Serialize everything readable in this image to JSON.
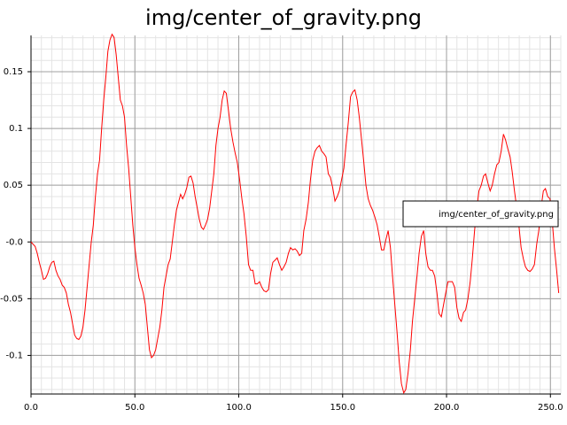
{
  "chart_data": {
    "type": "line",
    "title": "img/center_of_gravity.png",
    "x": [
      0,
      1,
      2,
      3,
      4,
      5,
      6,
      7,
      8,
      9,
      10,
      11,
      12,
      13,
      14,
      15,
      16,
      17,
      18,
      19,
      20,
      21,
      22,
      23,
      24,
      25,
      26,
      27,
      28,
      29,
      30,
      31,
      32,
      33,
      34,
      35,
      36,
      37,
      38,
      39,
      40,
      41,
      42,
      43,
      44,
      45,
      46,
      47,
      48,
      49,
      50,
      51,
      52,
      53,
      54,
      55,
      56,
      57,
      58,
      59,
      60,
      61,
      62,
      63,
      64,
      65,
      66,
      67,
      68,
      69,
      70,
      71,
      72,
      73,
      74,
      75,
      76,
      77,
      78,
      79,
      80,
      81,
      82,
      83,
      84,
      85,
      86,
      87,
      88,
      89,
      90,
      91,
      92,
      93,
      94,
      95.1,
      96.1,
      97.2,
      98.3,
      99.3,
      100.4,
      101.5,
      102.5,
      103.6,
      104.7,
      105.7,
      106.8,
      107.9,
      108.9,
      110.0,
      111.1,
      112.1,
      113.2,
      114.3,
      115.3,
      116.4,
      117.5,
      118.5,
      119.6,
      120.7,
      121.7,
      122.8,
      123.9,
      124.9,
      126.0,
      127.1,
      128.1,
      129.2,
      130.3,
      131.3,
      132.4,
      133.5,
      134.5,
      135.6,
      136.7,
      137.7,
      138.8,
      139.9,
      140.9,
      142.0,
      143.1,
      144.1,
      145.2,
      146.3,
      147.4,
      148.4,
      149.5,
      150.6,
      151.6,
      152.7,
      153.8,
      154.8,
      155.9,
      157.0,
      158.0,
      159.1,
      160.2,
      161.2,
      162.3,
      163.4,
      164.4,
      165.5,
      166.6,
      167.6,
      168.7,
      169.8,
      170.8,
      171.9,
      173.0,
      174.0,
      175.1,
      176.2,
      177.2,
      178.3,
      179.4,
      180.4,
      181.5,
      182.6,
      183.6,
      184.7,
      185.8,
      186.8,
      187.9,
      189.0,
      190.0,
      191.1,
      192.2,
      193.2,
      194.3,
      195.4,
      196.4,
      197.5,
      198.6,
      199.6,
      200.7,
      201.8,
      202.8,
      203.9,
      205.0,
      206.0,
      207.1,
      208.2,
      209.2,
      210.3,
      211.4,
      212.4,
      213.5,
      214.6,
      215.6,
      216.7,
      217.8,
      218.8,
      219.9,
      221.0,
      222.0,
      223.1,
      224.2,
      225.2,
      226.3,
      227.4,
      228.4,
      229.5,
      230.6,
      231.6,
      232.7,
      233.8,
      234.8,
      235.9,
      237.0,
      238.0,
      239.1,
      240.2,
      241.2,
      242.3,
      243.4,
      244.4,
      245.5,
      246.6,
      247.6,
      248.7,
      249.8,
      250.8,
      251.9,
      253.0,
      254.0
    ],
    "series": [
      {
        "name": "img/center_of_gravity.png",
        "color": "#ff0000",
        "values": [
          0.0,
          -0.002,
          -0.004,
          -0.01,
          -0.018,
          -0.025,
          -0.033,
          -0.032,
          -0.028,
          -0.022,
          -0.018,
          -0.017,
          -0.025,
          -0.03,
          -0.033,
          -0.038,
          -0.04,
          -0.045,
          -0.055,
          -0.062,
          -0.072,
          -0.082,
          -0.085,
          -0.086,
          -0.083,
          -0.075,
          -0.06,
          -0.04,
          -0.02,
          0.0,
          0.015,
          0.04,
          0.06,
          0.072,
          0.1,
          0.125,
          0.145,
          0.168,
          0.178,
          0.183,
          0.18,
          0.165,
          0.145,
          0.125,
          0.12,
          0.11,
          0.085,
          0.065,
          0.04,
          0.015,
          -0.005,
          -0.02,
          -0.032,
          -0.038,
          -0.045,
          -0.055,
          -0.075,
          -0.095,
          -0.102,
          -0.1,
          -0.095,
          -0.085,
          -0.075,
          -0.06,
          -0.04,
          -0.03,
          -0.02,
          -0.015,
          0.0,
          0.015,
          0.028,
          0.035,
          0.042,
          0.038,
          0.042,
          0.048,
          0.057,
          0.058,
          0.052,
          0.04,
          0.03,
          0.02,
          0.013,
          0.011,
          0.015,
          0.02,
          0.03,
          0.045,
          0.06,
          0.085,
          0.1,
          0.11,
          0.125,
          0.133,
          0.131,
          0.115,
          0.1,
          0.088,
          0.078,
          0.07,
          0.055,
          0.038,
          0.025,
          0.005,
          -0.02,
          -0.025,
          -0.025,
          -0.037,
          -0.037,
          -0.035,
          -0.04,
          -0.043,
          -0.044,
          -0.042,
          -0.028,
          -0.018,
          -0.016,
          -0.014,
          -0.02,
          -0.025,
          -0.022,
          -0.018,
          -0.01,
          -0.005,
          -0.007,
          -0.006,
          -0.008,
          -0.012,
          -0.01,
          0.01,
          0.02,
          0.035,
          0.055,
          0.072,
          0.08,
          0.083,
          0.085,
          0.08,
          0.078,
          0.075,
          0.06,
          0.057,
          0.048,
          0.036,
          0.04,
          0.045,
          0.055,
          0.065,
          0.085,
          0.105,
          0.128,
          0.132,
          0.134,
          0.125,
          0.11,
          0.09,
          0.07,
          0.05,
          0.038,
          0.032,
          0.028,
          0.022,
          0.015,
          0.005,
          -0.007,
          -0.007,
          0.002,
          0.01,
          -0.005,
          -0.03,
          -0.055,
          -0.08,
          -0.105,
          -0.125,
          -0.133,
          -0.13,
          -0.115,
          -0.095,
          -0.07,
          -0.05,
          -0.03,
          -0.01,
          0.005,
          0.01,
          -0.01,
          -0.022,
          -0.025,
          -0.025,
          -0.03,
          -0.045,
          -0.063,
          -0.066,
          -0.055,
          -0.045,
          -0.035,
          -0.035,
          -0.035,
          -0.04,
          -0.058,
          -0.067,
          -0.07,
          -0.062,
          -0.06,
          -0.05,
          -0.035,
          -0.015,
          0.01,
          0.03,
          0.045,
          0.05,
          0.058,
          0.06,
          0.052,
          0.045,
          0.05,
          0.06,
          0.068,
          0.07,
          0.08,
          0.095,
          0.09,
          0.082,
          0.075,
          0.062,
          0.045,
          0.03,
          0.015,
          -0.005,
          -0.015,
          -0.022,
          -0.025,
          -0.026,
          -0.024,
          -0.02,
          -0.002,
          0.01,
          0.03,
          0.045,
          0.047,
          0.04,
          0.038,
          0.02,
          -0.005,
          -0.025,
          -0.045
        ]
      }
    ],
    "xlim": [
      0,
      255
    ],
    "ylim": [
      -0.134,
      0.182
    ],
    "xticks": [
      {
        "value": 0,
        "label": "0.0"
      },
      {
        "value": 50,
        "label": "50.0"
      },
      {
        "value": 100,
        "label": "100.0"
      },
      {
        "value": 150,
        "label": "150.0"
      },
      {
        "value": 200,
        "label": "200.0"
      },
      {
        "value": 250,
        "label": "250.0"
      }
    ],
    "yticks": [
      -0.1,
      -0.05,
      {
        "value": 0,
        "label": "-0.0"
      },
      0.05,
      0.1,
      0.15
    ],
    "grid": true,
    "minor_grid": [
      10,
      5
    ],
    "legend": "right"
  }
}
